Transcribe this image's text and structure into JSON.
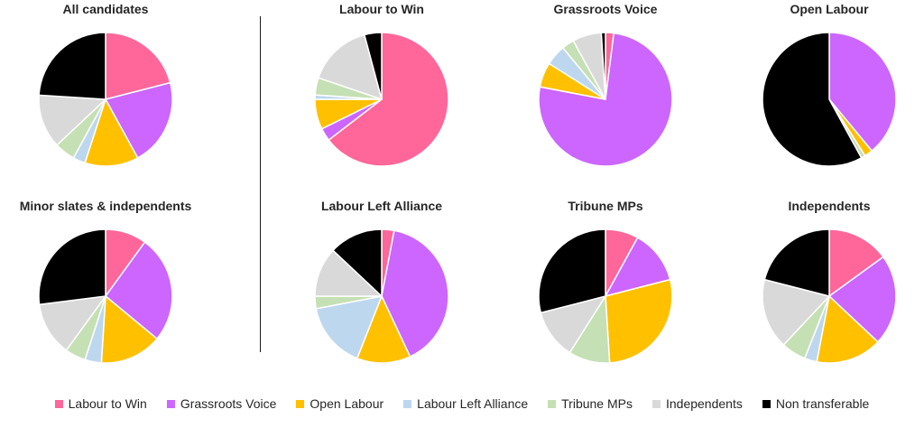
{
  "colors": {
    "Labour to Win": "#ff6699",
    "Grassroots Voice": "#cc66ff",
    "Open Labour": "#ffc000",
    "Labour Left Alliance": "#bdd7ee",
    "Tribune MPs": "#c5e0b4",
    "Independents": "#d9d9d9",
    "Non transferable": "#000000"
  },
  "chart_data": [
    {
      "type": "pie",
      "title": "All candidates",
      "categories": [
        "Labour to Win",
        "Grassroots Voice",
        "Open Labour",
        "Labour Left Alliance",
        "Tribune MPs",
        "Independents",
        "Non transferable"
      ],
      "values": [
        21,
        21,
        13,
        3,
        5,
        13,
        24
      ]
    },
    {
      "type": "pie",
      "title": "Labour to Win",
      "categories": [
        "Labour to Win",
        "Grassroots Voice",
        "Open Labour",
        "Labour Left Alliance",
        "Tribune MPs",
        "Independents",
        "Non transferable"
      ],
      "values": [
        62,
        3,
        7,
        1,
        4,
        15,
        4
      ]
    },
    {
      "type": "pie",
      "title": "Grassroots Voice",
      "categories": [
        "Labour to Win",
        "Grassroots Voice",
        "Open Labour",
        "Labour Left Alliance",
        "Tribune MPs",
        "Independents",
        "Non transferable"
      ],
      "values": [
        2,
        76,
        6,
        5,
        3,
        7,
        1
      ]
    },
    {
      "type": "pie",
      "title": "Open Labour",
      "categories": [
        "Labour to Win",
        "Grassroots Voice",
        "Open Labour",
        "Labour Left Alliance",
        "Tribune MPs",
        "Independents",
        "Non transferable"
      ],
      "values": [
        0,
        39,
        2,
        0,
        1,
        0,
        58
      ]
    },
    {
      "type": "pie",
      "title": "Minor slates & independents",
      "categories": [
        "Labour to Win",
        "Grassroots Voice",
        "Open Labour",
        "Labour Left Alliance",
        "Tribune MPs",
        "Independents",
        "Non transferable"
      ],
      "values": [
        10,
        26,
        15,
        4,
        5,
        13,
        27
      ]
    },
    {
      "type": "pie",
      "title": "Labour Left Alliance",
      "categories": [
        "Labour to Win",
        "Grassroots Voice",
        "Open Labour",
        "Labour Left Alliance",
        "Tribune MPs",
        "Independents",
        "Non transferable"
      ],
      "values": [
        3,
        40,
        13,
        16,
        3,
        12,
        13
      ]
    },
    {
      "type": "pie",
      "title": "Tribune MPs",
      "categories": [
        "Labour to Win",
        "Grassroots Voice",
        "Open Labour",
        "Labour Left Alliance",
        "Tribune MPs",
        "Independents",
        "Non transferable"
      ],
      "values": [
        8,
        13,
        28,
        0,
        10,
        12,
        29
      ]
    },
    {
      "type": "pie",
      "title": "Independents",
      "categories": [
        "Labour to Win",
        "Grassroots Voice",
        "Open Labour",
        "Labour Left Alliance",
        "Tribune MPs",
        "Independents",
        "Non transferable"
      ],
      "values": [
        15,
        22,
        16,
        3,
        6,
        17,
        21
      ]
    }
  ],
  "legend": [
    {
      "label": "Labour to Win",
      "color": "#ff6699"
    },
    {
      "label": "Grassroots Voice",
      "color": "#cc66ff"
    },
    {
      "label": "Open Labour",
      "color": "#ffc000"
    },
    {
      "label": "Labour Left Alliance",
      "color": "#bdd7ee"
    },
    {
      "label": "Tribune MPs",
      "color": "#c5e0b4"
    },
    {
      "label": "Independents",
      "color": "#d9d9d9"
    },
    {
      "label": "Non transferable",
      "color": "#000000"
    }
  ]
}
